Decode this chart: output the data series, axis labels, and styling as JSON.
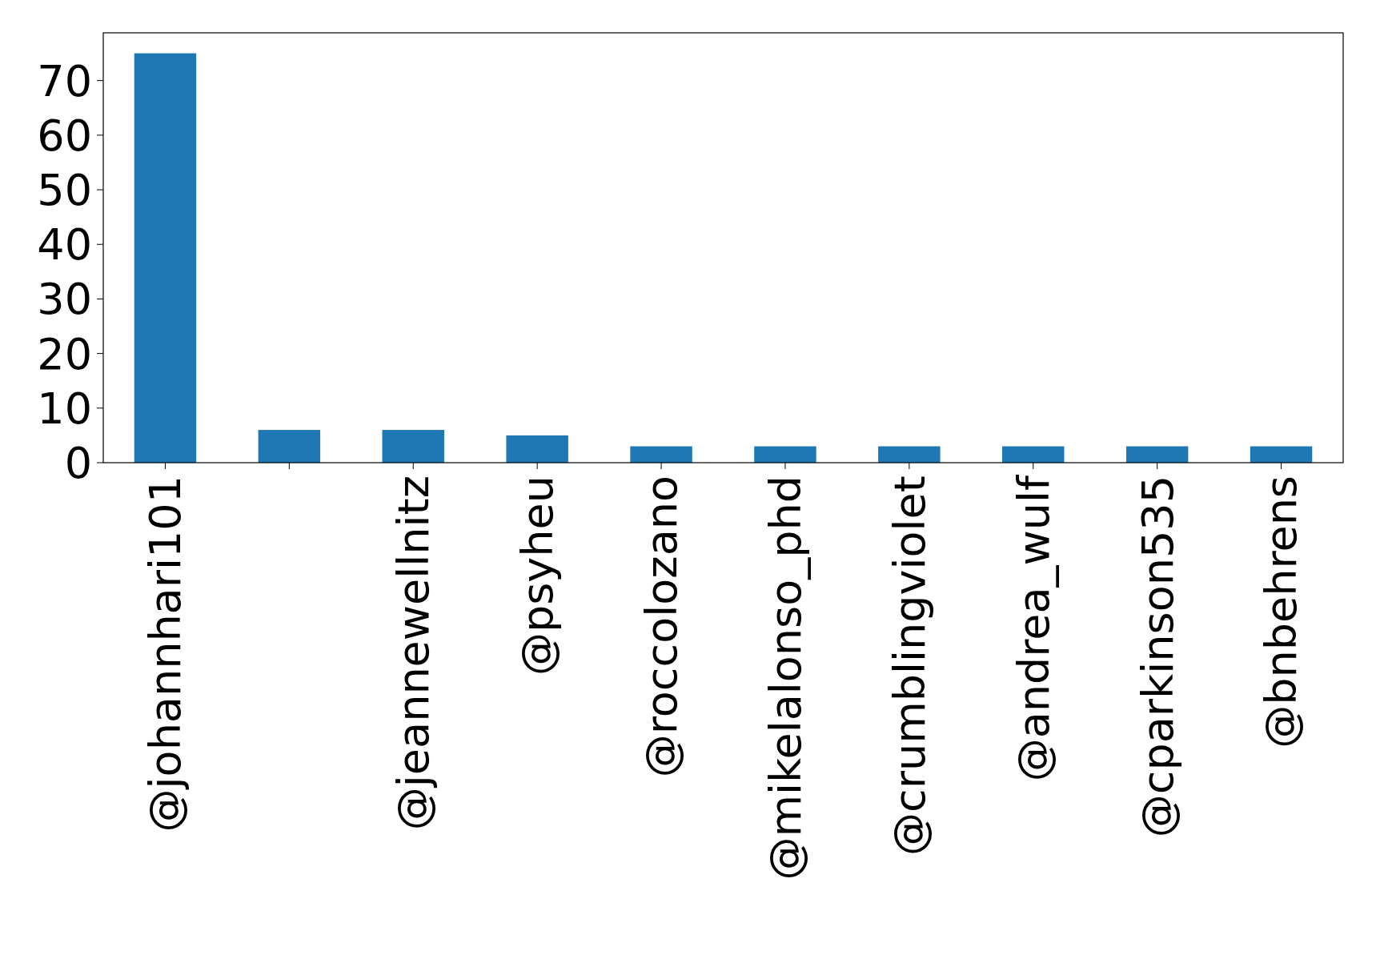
{
  "chart_data": {
    "type": "bar",
    "categories": [
      "@johannhari101",
      null,
      "@jeannewellnitz",
      "@psyheu",
      "@roccolozano",
      "@mikelalonso_phd",
      "@crumblingviolet",
      "@andrea_wulf",
      "@cparkinson535",
      "@bnbehrens"
    ],
    "values": [
      75,
      6,
      6,
      5,
      3,
      3,
      3,
      3,
      3,
      3
    ],
    "color": "#1f77b4",
    "ylim": [
      0,
      78.75
    ],
    "yticks": [
      0,
      10,
      20,
      30,
      40,
      50,
      60,
      70
    ],
    "grid": false
  }
}
